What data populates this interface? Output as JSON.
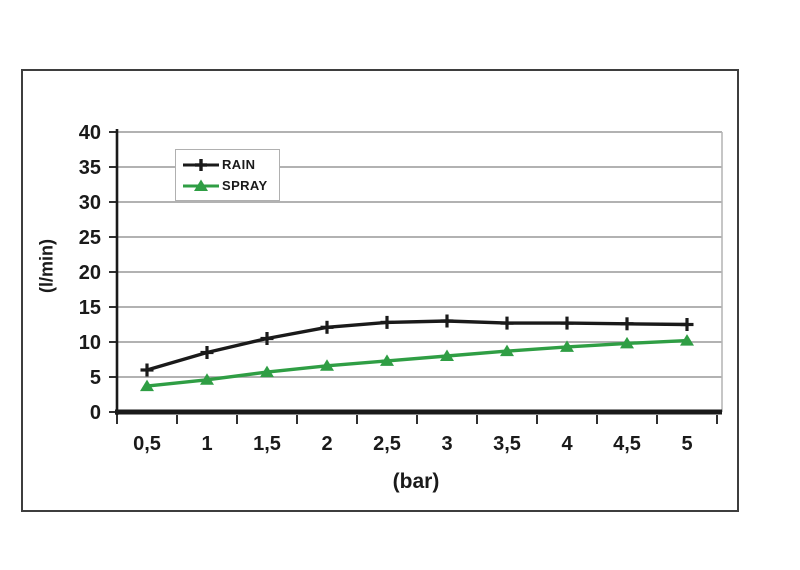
{
  "chart_data": {
    "type": "line",
    "title": "",
    "xlabel": "(bar)",
    "ylabel": "(l/min)",
    "x": [
      0.5,
      1,
      1.5,
      2,
      2.5,
      3,
      3.5,
      4,
      4.5,
      5
    ],
    "x_tick_labels": [
      "0,5",
      "1",
      "1,5",
      "2",
      "2,5",
      "3",
      "3,5",
      "4",
      "4,5",
      "5"
    ],
    "y_ticks": [
      0,
      5,
      10,
      15,
      20,
      25,
      30,
      35,
      40
    ],
    "y_tick_labels": [
      "0",
      "5",
      "10",
      "15",
      "20",
      "25",
      "30",
      "35",
      "40"
    ],
    "ylim": [
      0,
      40
    ],
    "grid": "horizontal",
    "legend_position": "top-left-inside",
    "series": [
      {
        "name": "RAIN",
        "color": "#1a1a1a",
        "marker": "plus",
        "values": [
          6.0,
          8.5,
          10.5,
          12.1,
          12.8,
          13.0,
          12.7,
          12.7,
          12.6,
          12.5
        ]
      },
      {
        "name": "SPRAY",
        "color": "#2f9e44",
        "marker": "triangle",
        "values": [
          3.7,
          4.6,
          5.7,
          6.6,
          7.3,
          8.0,
          8.7,
          9.3,
          9.8,
          10.2
        ]
      }
    ],
    "colors": {
      "axis": "#1a1a1a",
      "grid": "#999999",
      "plot_right_edge": "#b4b4b4",
      "frame_border": "#3e3e3e",
      "legend_border": "#b0b0b0",
      "background": "#ffffff",
      "text": "#1a1a1a"
    }
  }
}
